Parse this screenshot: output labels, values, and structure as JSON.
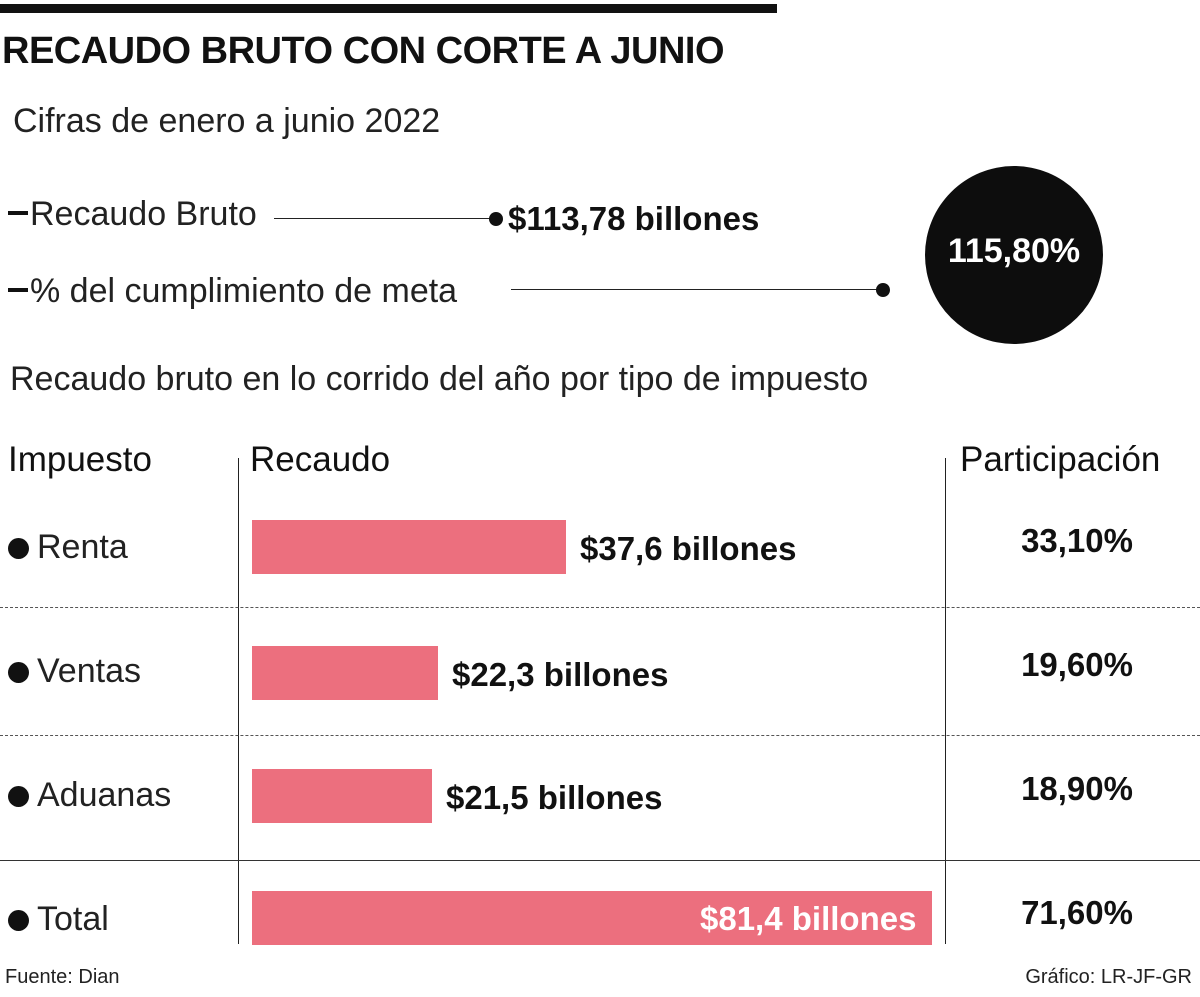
{
  "title": "RECAUDO BRUTO CON CORTE A JUNIO",
  "subtitle": "Cifras de enero a junio 2022",
  "kpis": {
    "gross_label": "Recaudo Bruto",
    "gross_value": "$113,78 billones",
    "goal_label": "% del cumplimiento de meta",
    "goal_value": "115,80%"
  },
  "section_label": "Recaudo bruto en lo corrido del año por tipo de impuesto",
  "columns": {
    "impuesto": "Impuesto",
    "recaudo": "Recaudo",
    "participacion": "Participación"
  },
  "colors": {
    "bar": "#ec6f7e",
    "ink": "#111111"
  },
  "chart_data": {
    "type": "bar",
    "orientation": "horizontal",
    "title": "Recaudo bruto en lo corrido del año por tipo de impuesto",
    "categories": [
      "Renta",
      "Ventas",
      "Aduanas",
      "Total"
    ],
    "values": [
      37.6,
      22.3,
      21.5,
      81.4
    ],
    "value_labels": [
      "$37,6 billones",
      "$22,3 billones",
      "$21,5 billones",
      "$81,4 billones"
    ],
    "share_labels": [
      "33,10%",
      "19,60%",
      "18,90%",
      "71,60%"
    ],
    "unit": "billones de pesos",
    "xlim": [
      0,
      81.4
    ]
  },
  "footer": {
    "source": "Fuente: Dian",
    "credit": "Gráfico: LR-JF-GR"
  }
}
